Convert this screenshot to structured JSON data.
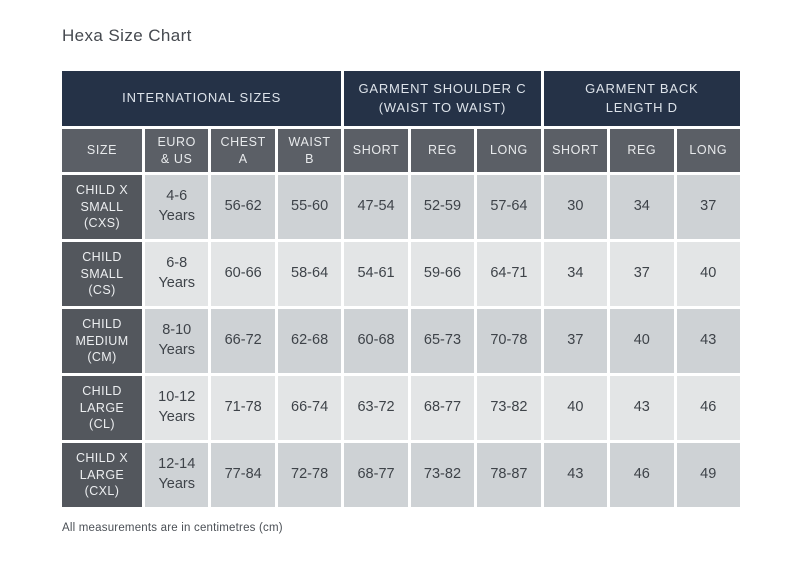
{
  "page": {
    "title": "Hexa Size Chart",
    "footnote": "All measurements are in centimetres (cm)"
  },
  "colors": {
    "group_header_bg": "#253247",
    "column_header_bg": "#5b5f66",
    "size_cell_bg": "#53575d",
    "row_shade_dark": "#ced2d5",
    "row_shade_light": "#e3e5e6",
    "data_text": "#3e4349",
    "header_text": "#e8eaec"
  },
  "table": {
    "group_headers": [
      {
        "label": "INTERNATIONAL SIZES",
        "span": 4
      },
      {
        "label": "GARMENT SHOULDER C\n(WAIST TO WAIST)",
        "span": 3
      },
      {
        "label": "GARMENT BACK\nLENGTH D",
        "span": 3
      }
    ],
    "column_headers": [
      "SIZE",
      "EURO\n& US",
      "CHEST\nA",
      "WAIST\nB",
      "SHORT",
      "REG",
      "LONG",
      "SHORT",
      "REG",
      "LONG"
    ],
    "rows": [
      {
        "size": "CHILD X\nSMALL\n(CXS)",
        "cells": [
          "4-6\nYears",
          "56-62",
          "55-60",
          "47-54",
          "52-59",
          "57-64",
          "30",
          "34",
          "37"
        ]
      },
      {
        "size": "CHILD\nSMALL\n(CS)",
        "cells": [
          "6-8\nYears",
          "60-66",
          "58-64",
          "54-61",
          "59-66",
          "64-71",
          "34",
          "37",
          "40"
        ]
      },
      {
        "size": "CHILD\nMEDIUM\n(CM)",
        "cells": [
          "8-10\nYears",
          "66-72",
          "62-68",
          "60-68",
          "65-73",
          "70-78",
          "37",
          "40",
          "43"
        ]
      },
      {
        "size": "CHILD\nLARGE\n(CL)",
        "cells": [
          "10-12\nYears",
          "71-78",
          "66-74",
          "63-72",
          "68-77",
          "73-82",
          "40",
          "43",
          "46"
        ]
      },
      {
        "size": "CHILD X\nLARGE\n(CXL)",
        "cells": [
          "12-14\nYears",
          "77-84",
          "72-78",
          "68-77",
          "73-82",
          "78-87",
          "43",
          "46",
          "49"
        ]
      }
    ]
  }
}
